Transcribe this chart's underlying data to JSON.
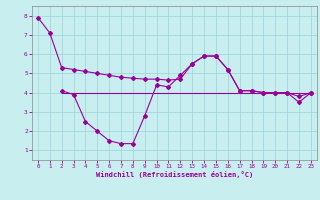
{
  "xlabel": "Windchill (Refroidissement éolien,°C)",
  "background_color": "#c8eef0",
  "line_color": "#990099",
  "grid_color": "#a0d8e0",
  "xlim": [
    -0.5,
    23.5
  ],
  "ylim": [
    0.5,
    8.5
  ],
  "yticks": [
    1,
    2,
    3,
    4,
    5,
    6,
    7,
    8
  ],
  "xticks": [
    0,
    1,
    2,
    3,
    4,
    5,
    6,
    7,
    8,
    9,
    10,
    11,
    12,
    13,
    14,
    15,
    16,
    17,
    18,
    19,
    20,
    21,
    22,
    23
  ],
  "line1_x": [
    0,
    1,
    2,
    3,
    4,
    5,
    6,
    7,
    8,
    9,
    10,
    11,
    12,
    13,
    14,
    15,
    16,
    17,
    18,
    19,
    20,
    21,
    22,
    23
  ],
  "line1_y": [
    7.9,
    7.1,
    5.3,
    5.2,
    5.1,
    5.0,
    4.9,
    4.8,
    4.75,
    4.7,
    4.7,
    4.65,
    4.7,
    5.5,
    5.9,
    5.9,
    5.2,
    4.1,
    4.1,
    4.0,
    4.0,
    4.0,
    3.8,
    4.0
  ],
  "line2_x": [
    2,
    3,
    4,
    5,
    6,
    7,
    8,
    9,
    10,
    11,
    12,
    13,
    14,
    15,
    16,
    17,
    18,
    19,
    20,
    21,
    22,
    23
  ],
  "line2_y": [
    4.1,
    3.9,
    2.5,
    2.0,
    1.5,
    1.35,
    1.35,
    2.8,
    4.4,
    4.3,
    4.9,
    5.5,
    5.9,
    5.9,
    5.2,
    4.1,
    4.1,
    4.0,
    4.0,
    4.0,
    3.5,
    4.0
  ],
  "hline_y": 4.0,
  "hline_x_start": 2,
  "hline_x_end": 23
}
